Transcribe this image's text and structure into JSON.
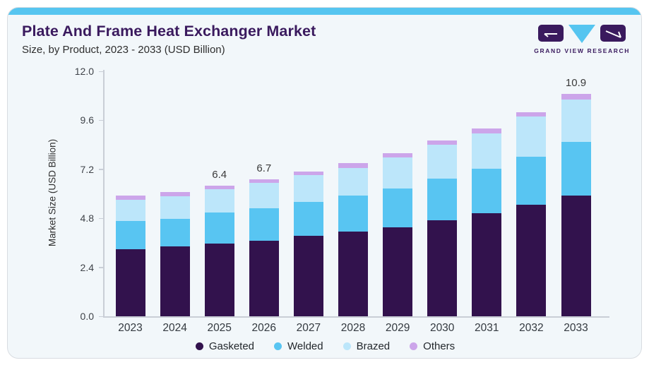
{
  "header": {
    "title": "Plate And Frame Heat Exchanger Market",
    "subtitle": "Size, by Product, 2023 - 2033 (USD Billion)",
    "brand": "GRAND VIEW RESEARCH"
  },
  "colors": {
    "accent_bar": "#56C5F0",
    "card_background": "#F2F7FA",
    "card_border": "#D8DCE1",
    "title_text": "#3A1A5E",
    "axis_line": "#C9CED6",
    "tick_text": "#3F4349",
    "value_label_text": "#3A3A3A"
  },
  "chart_data": {
    "type": "bar",
    "stacked": true,
    "title": "Plate And Frame Heat Exchanger Market Size, by Product, 2023 - 2033 (USD Billion)",
    "xlabel": "",
    "ylabel": "Market Size (USD Billion)",
    "ylim": [
      0,
      12.0
    ],
    "yticks": [
      0.0,
      2.4,
      4.8,
      7.2,
      9.6,
      12.0
    ],
    "grid": false,
    "legend_position": "bottom",
    "categories": [
      "2023",
      "2024",
      "2025",
      "2026",
      "2027",
      "2028",
      "2029",
      "2030",
      "2031",
      "2032",
      "2033"
    ],
    "series": [
      {
        "name": "Gasketed",
        "color": "#32124D",
        "values": [
          3.29,
          3.43,
          3.58,
          3.71,
          3.96,
          4.14,
          4.37,
          4.7,
          5.04,
          5.47,
          5.91
        ]
      },
      {
        "name": "Welded",
        "color": "#58C5F2",
        "values": [
          1.38,
          1.37,
          1.49,
          1.58,
          1.64,
          1.78,
          1.91,
          2.05,
          2.19,
          2.36,
          2.63
        ]
      },
      {
        "name": "Brazed",
        "color": "#BCE6FA",
        "values": [
          1.04,
          1.09,
          1.17,
          1.25,
          1.31,
          1.36,
          1.5,
          1.67,
          1.72,
          1.96,
          2.1
        ]
      },
      {
        "name": "Others",
        "color": "#CCA5EA",
        "values": [
          0.19,
          0.21,
          0.16,
          0.16,
          0.19,
          0.22,
          0.22,
          0.18,
          0.25,
          0.21,
          0.26
        ]
      }
    ],
    "totals": [
      5.9,
      6.1,
      6.4,
      6.7,
      7.1,
      7.5,
      8.0,
      8.6,
      9.2,
      10.0,
      10.9
    ],
    "bar_value_labels": [
      "",
      "",
      "6.4",
      "6.7",
      "",
      "",
      "",
      "",
      "",
      "",
      "10.9"
    ]
  }
}
